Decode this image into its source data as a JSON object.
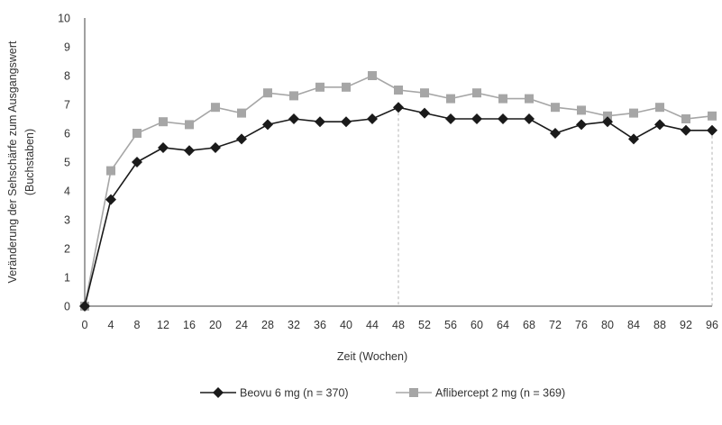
{
  "chart_data": {
    "type": "line",
    "xlabel": "Zeit (Wochen)",
    "ylabel_line1": "Veränderung der Sehschärfe zum Ausgangswert",
    "ylabel_line2": "(Buchstaben)",
    "ylim": [
      0,
      10
    ],
    "yticks": [
      0,
      1,
      2,
      3,
      4,
      5,
      6,
      7,
      8,
      9,
      10
    ],
    "x": [
      0,
      4,
      8,
      12,
      16,
      20,
      24,
      28,
      32,
      36,
      40,
      44,
      48,
      52,
      56,
      60,
      64,
      68,
      72,
      76,
      80,
      84,
      88,
      92,
      96
    ],
    "grid": false,
    "reference_lines_x": [
      48,
      96
    ],
    "legend_position": "bottom",
    "series": [
      {
        "name": "Beovu 6 mg (n = 370)",
        "color": "#1a1a1a",
        "marker": "diamond",
        "values": [
          0,
          3.7,
          5.0,
          5.5,
          5.4,
          5.5,
          5.8,
          6.3,
          6.5,
          6.4,
          6.4,
          6.5,
          6.9,
          6.7,
          6.5,
          6.5,
          6.5,
          6.5,
          6.0,
          6.3,
          6.4,
          5.8,
          6.3,
          6.1,
          6.1
        ]
      },
      {
        "name": "Aflibercept 2 mg (n = 369)",
        "color": "#a6a6a6",
        "marker": "square",
        "values": [
          0,
          4.7,
          6.0,
          6.4,
          6.3,
          6.9,
          6.7,
          7.4,
          7.3,
          7.6,
          7.6,
          8.0,
          7.5,
          7.4,
          7.2,
          7.4,
          7.2,
          7.2,
          6.9,
          6.8,
          6.6,
          6.7,
          6.9,
          6.5,
          6.6
        ]
      }
    ]
  }
}
